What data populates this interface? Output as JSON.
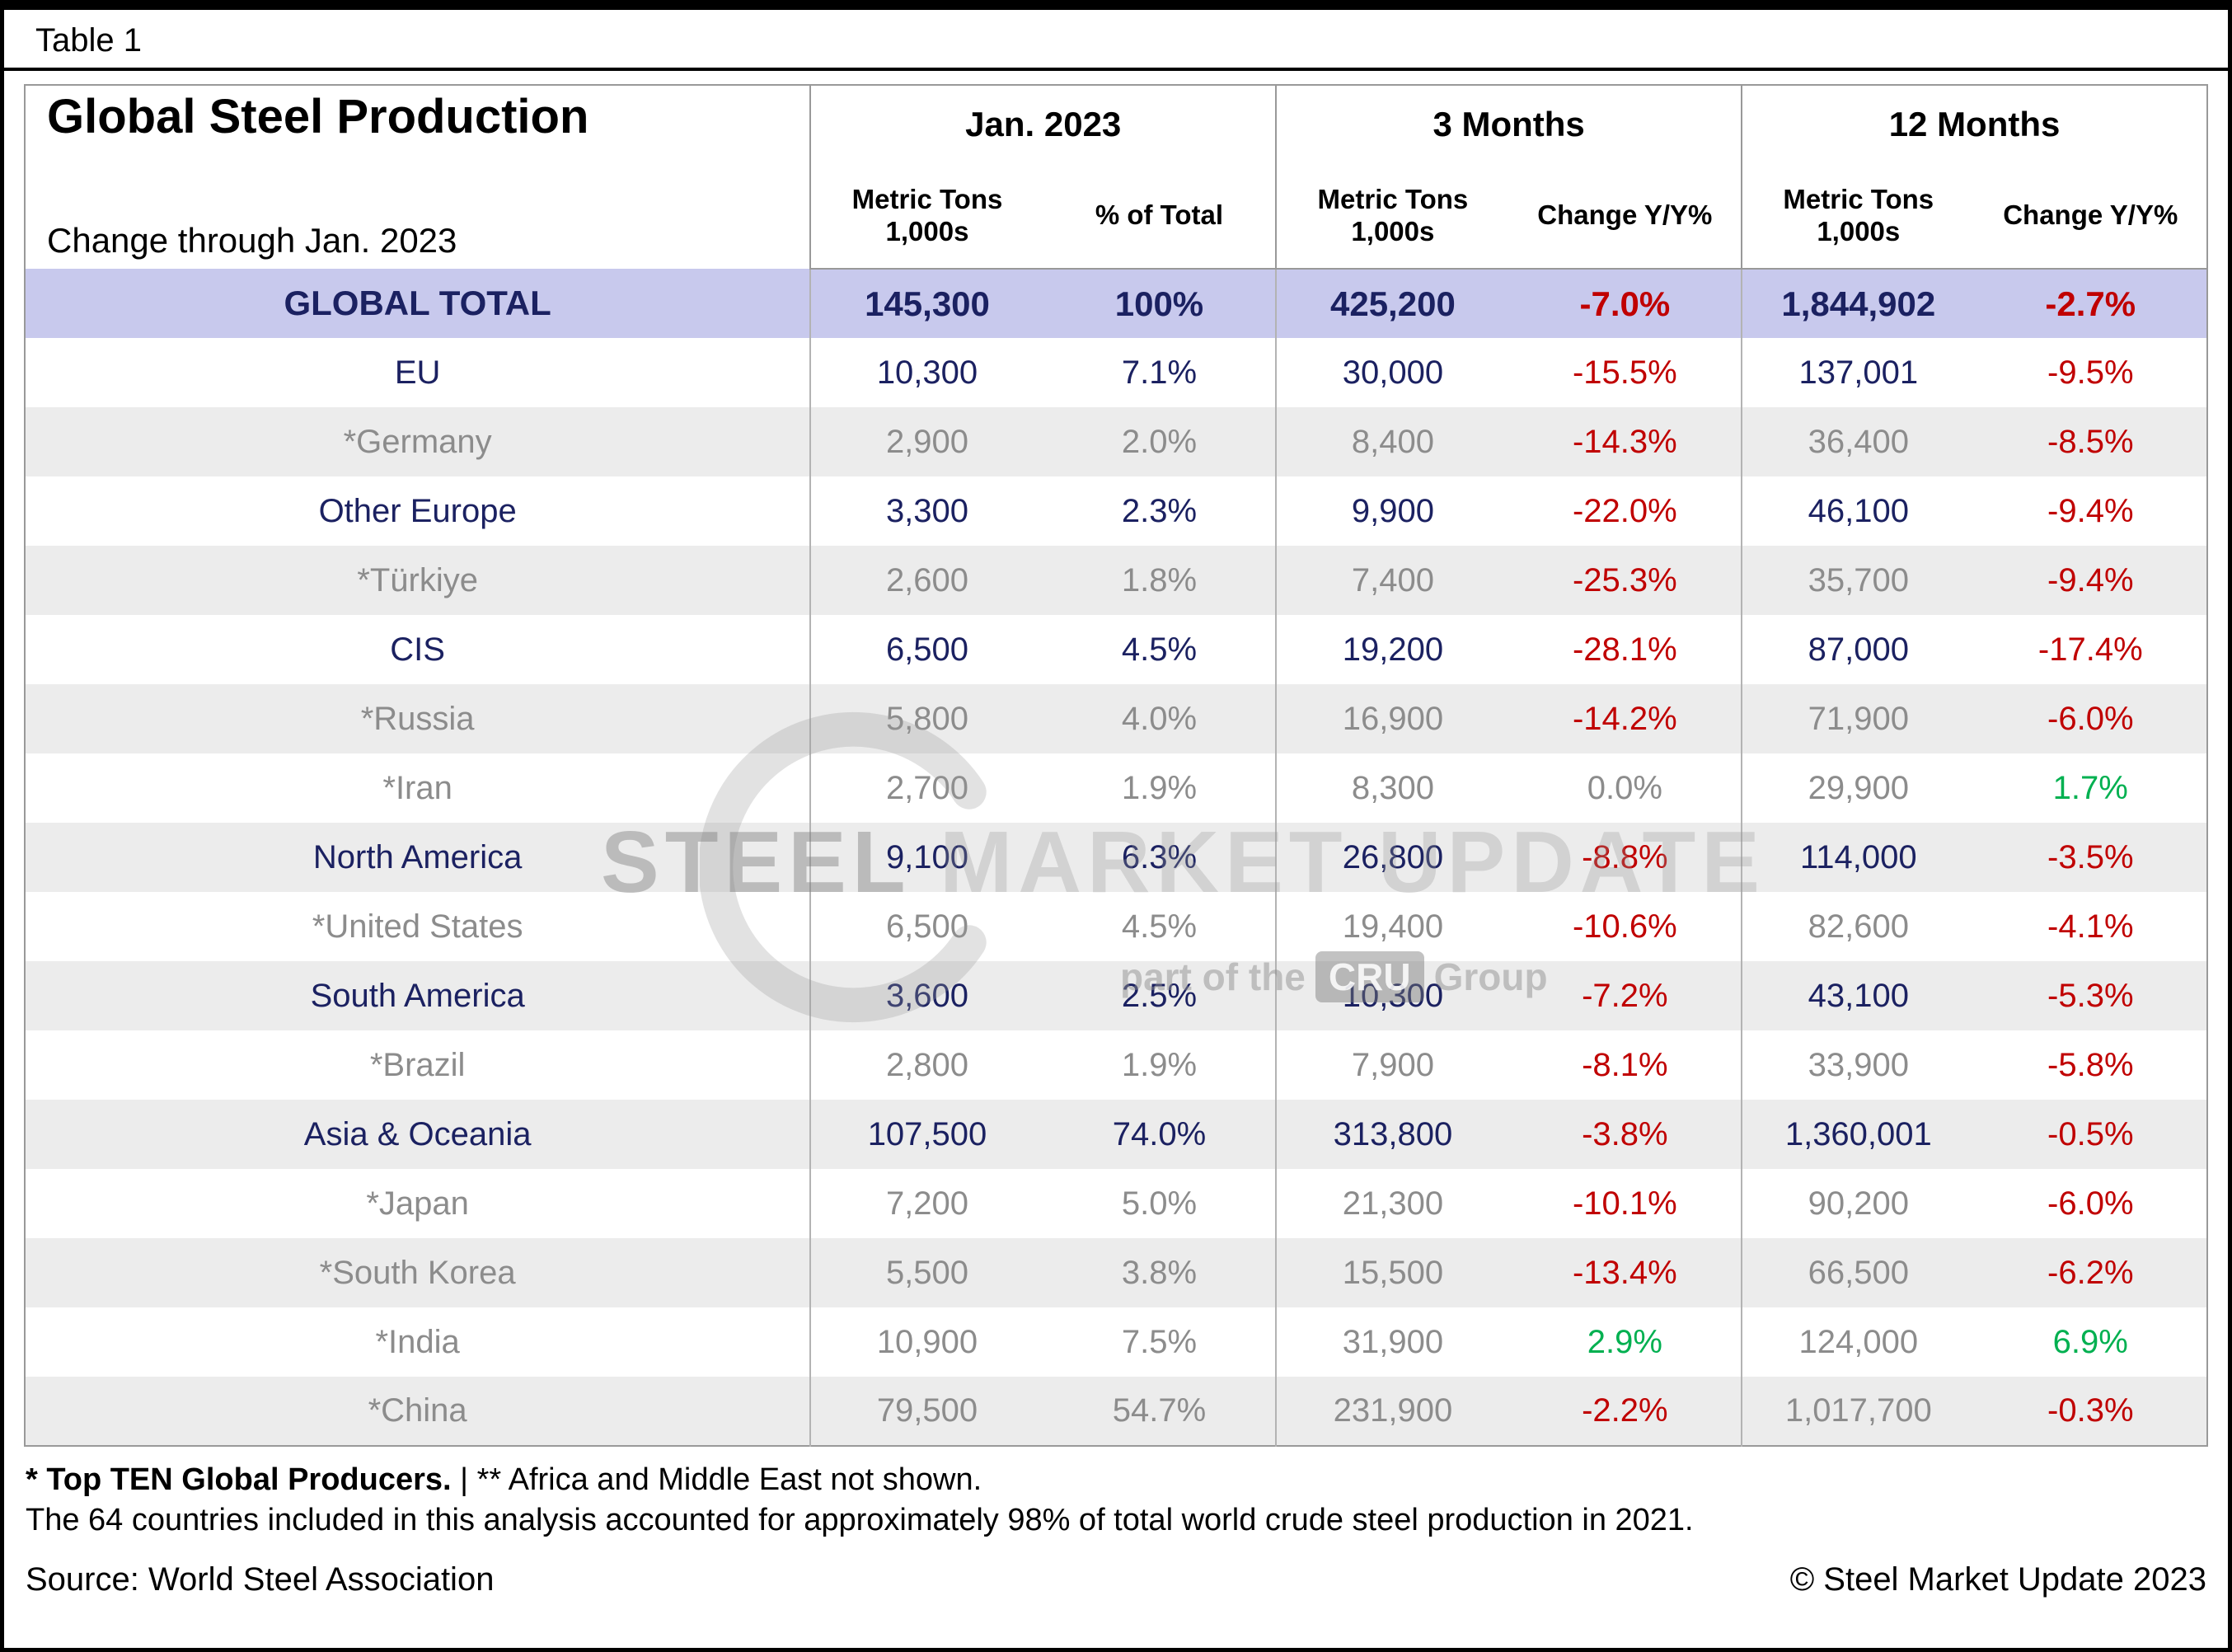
{
  "page": {
    "table_label": "Table 1"
  },
  "header": {
    "title": "Global Steel Production",
    "subtitle": "Change through Jan. 2023",
    "groups": [
      {
        "label": "Jan. 2023",
        "col1": "Metric Tons\n1,000s",
        "col2": "% of Total"
      },
      {
        "label": "3 Months",
        "col1": "Metric Tons\n1,000s",
        "col2": "Change Y/Y%"
      },
      {
        "label": "12 Months",
        "col1": "Metric Tons\n1,000s",
        "col2": "Change Y/Y%"
      }
    ]
  },
  "chart_data": {
    "type": "table",
    "title": "Global Steel Production",
    "subtitle": "Change through Jan. 2023",
    "column_groups": [
      {
        "label": "Jan. 2023",
        "columns": [
          "Metric Tons 1,000s",
          "% of Total"
        ]
      },
      {
        "label": "3 Months",
        "columns": [
          "Metric Tons 1,000s",
          "Change Y/Y%"
        ]
      },
      {
        "label": "12 Months",
        "columns": [
          "Metric Tons 1,000s",
          "Change Y/Y%"
        ]
      }
    ],
    "rows": [
      {
        "name": "GLOBAL TOTAL",
        "level": "total",
        "cells": [
          "145,300",
          "100%",
          "425,200",
          "-7.0%",
          "1,844,902",
          "-2.7%"
        ]
      },
      {
        "name": "EU",
        "level": "region",
        "cells": [
          "10,300",
          "7.1%",
          "30,000",
          "-15.5%",
          "137,001",
          "-9.5%"
        ]
      },
      {
        "name": "*Germany",
        "level": "country",
        "cells": [
          "2,900",
          "2.0%",
          "8,400",
          "-14.3%",
          "36,400",
          "-8.5%"
        ]
      },
      {
        "name": "Other Europe",
        "level": "region",
        "cells": [
          "3,300",
          "2.3%",
          "9,900",
          "-22.0%",
          "46,100",
          "-9.4%"
        ]
      },
      {
        "name": "*Türkiye",
        "level": "country",
        "cells": [
          "2,600",
          "1.8%",
          "7,400",
          "-25.3%",
          "35,700",
          "-9.4%"
        ]
      },
      {
        "name": "CIS",
        "level": "region",
        "cells": [
          "6,500",
          "4.5%",
          "19,200",
          "-28.1%",
          "87,000",
          "-17.4%"
        ]
      },
      {
        "name": "*Russia",
        "level": "country",
        "cells": [
          "5,800",
          "4.0%",
          "16,900",
          "-14.2%",
          "71,900",
          "-6.0%"
        ]
      },
      {
        "name": "*Iran",
        "level": "country",
        "cells": [
          "2,700",
          "1.9%",
          "8,300",
          "0.0%",
          "29,900",
          "1.7%"
        ]
      },
      {
        "name": "North America",
        "level": "region",
        "cells": [
          "9,100",
          "6.3%",
          "26,800",
          "-8.8%",
          "114,000",
          "-3.5%"
        ]
      },
      {
        "name": "*United States",
        "level": "country",
        "cells": [
          "6,500",
          "4.5%",
          "19,400",
          "-10.6%",
          "82,600",
          "-4.1%"
        ]
      },
      {
        "name": "South America",
        "level": "region",
        "cells": [
          "3,600",
          "2.5%",
          "10,300",
          "-7.2%",
          "43,100",
          "-5.3%"
        ]
      },
      {
        "name": "*Brazil",
        "level": "country",
        "cells": [
          "2,800",
          "1.9%",
          "7,900",
          "-8.1%",
          "33,900",
          "-5.8%"
        ]
      },
      {
        "name": "Asia & Oceania",
        "level": "region",
        "cells": [
          "107,500",
          "74.0%",
          "313,800",
          "-3.8%",
          "1,360,001",
          "-0.5%"
        ]
      },
      {
        "name": "*Japan",
        "level": "country",
        "cells": [
          "7,200",
          "5.0%",
          "21,300",
          "-10.1%",
          "90,200",
          "-6.0%"
        ]
      },
      {
        "name": "*South Korea",
        "level": "country",
        "cells": [
          "5,500",
          "3.8%",
          "15,500",
          "-13.4%",
          "66,500",
          "-6.2%"
        ]
      },
      {
        "name": "*India",
        "level": "country",
        "cells": [
          "10,900",
          "7.5%",
          "31,900",
          "2.9%",
          "124,000",
          "6.9%"
        ]
      },
      {
        "name": "*China",
        "level": "country",
        "cells": [
          "79,500",
          "54.7%",
          "231,900",
          "-2.2%",
          "1,017,700",
          "-0.3%"
        ]
      }
    ]
  },
  "watermark": {
    "brand_left": "STEEL",
    "brand_right": " MARKET UPDATE",
    "tagline_prefix": "part of the",
    "tagline_box": "CRU",
    "tagline_suffix": "Group"
  },
  "footer": {
    "footnote1_bold": "* Top TEN Global Producers.",
    "footnote1_rest": " | ** Africa and Middle East not shown.",
    "footnote2": "The 64 countries included in this analysis accounted for approximately 98% of total world crude steel production in 2021.",
    "source": "Source: World Steel Association",
    "copyright": "© Steel Market Update 2023"
  },
  "colors": {
    "total_bg": "#c8c9ed",
    "navy": "#1b2161",
    "gray_text": "#8c8c8c",
    "neg": "#c00000",
    "pos": "#00b050",
    "stripe": "#ececec"
  }
}
